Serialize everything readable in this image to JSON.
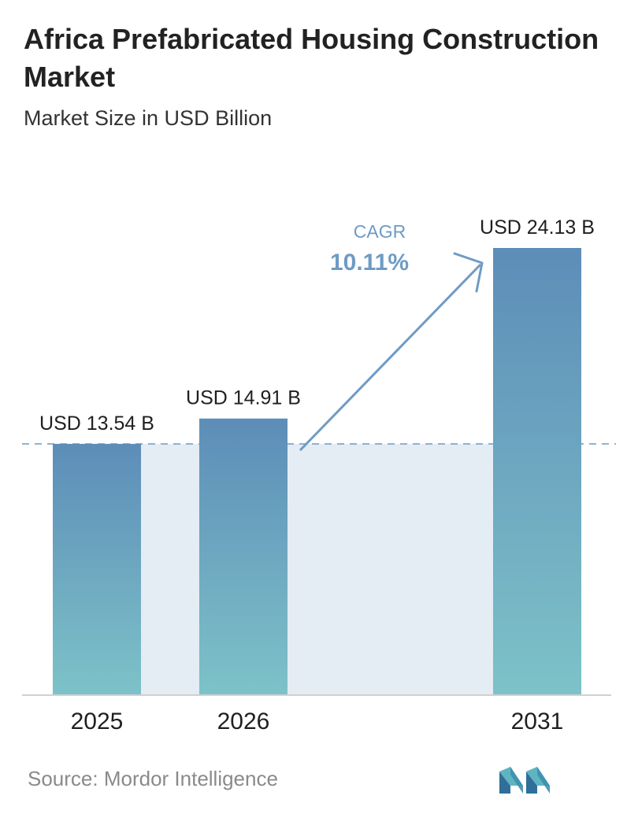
{
  "title": "Africa Prefabricated Housing Construction Market",
  "subtitle": "Market Size in USD Billion",
  "source": "Source:  Mordor Intelligence",
  "colors": {
    "bar_top": "#5d8db8",
    "bar_bottom": "#7dc2c8",
    "band": "#e4ecf4",
    "accent": "#6e9bc4",
    "text": "#1f1f1f"
  },
  "chart_data": {
    "type": "bar",
    "categories": [
      "2025",
      "2026",
      "2031"
    ],
    "values": [
      13.54,
      14.91,
      24.13
    ],
    "value_labels": [
      "USD 13.54 B",
      "USD 14.91 B",
      "USD 24.13 B"
    ],
    "cagr": {
      "label": "CAGR",
      "value": "10.11%"
    },
    "reference_line": 13.54,
    "grid": false
  }
}
